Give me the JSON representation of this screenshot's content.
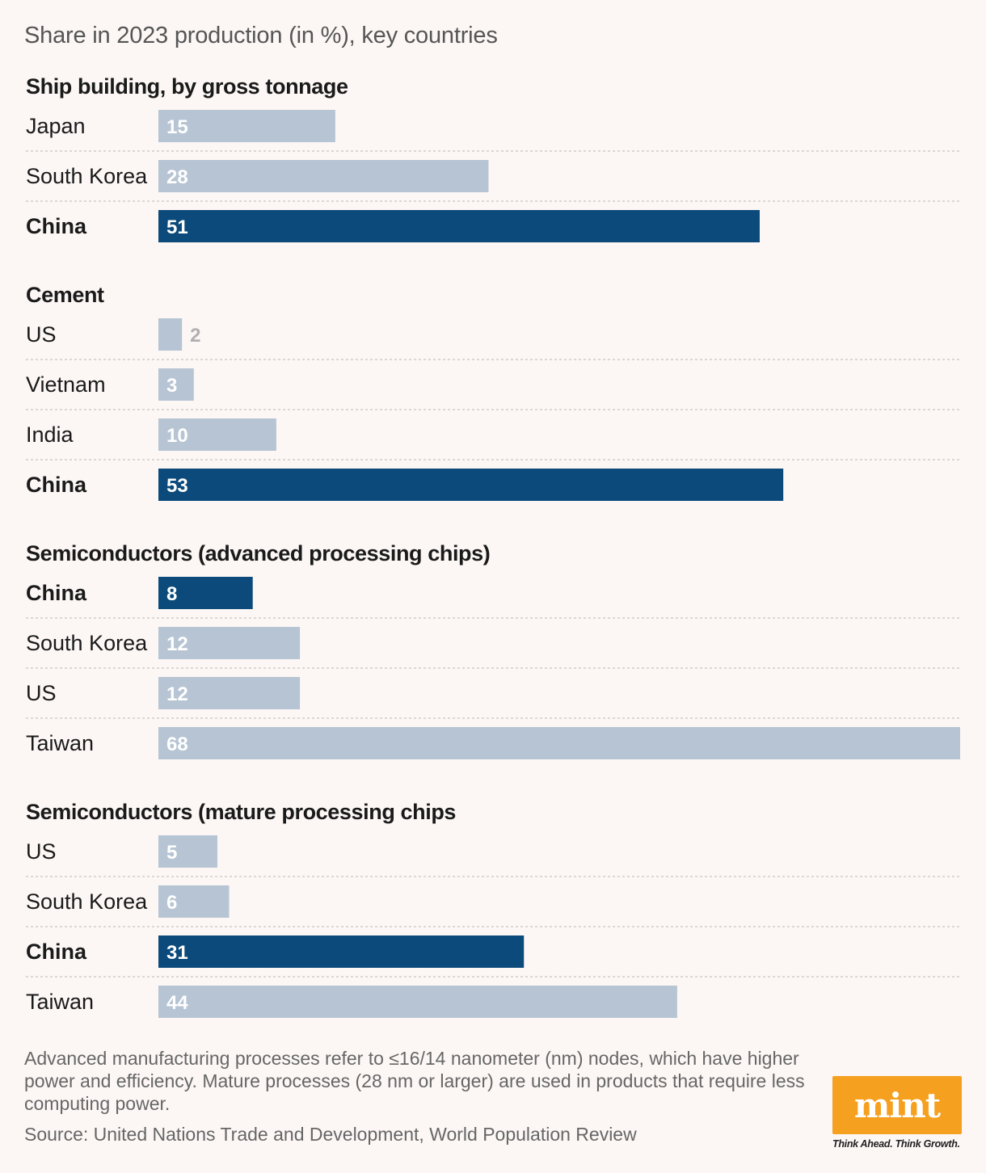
{
  "subtitle": "Share in 2023 production (in %), key countries",
  "chart_data": {
    "type": "bar",
    "orientation": "horizontal",
    "title": "Share in 2023 production (in %), key countries",
    "unit": "%",
    "highlight_color": "#0b4a7a",
    "base_color": "#b6c4d3",
    "panels": [
      {
        "title": "Ship building, by gross tonnage",
        "categories": [
          "Japan",
          "South Korea",
          "China"
        ],
        "values": [
          15,
          28,
          51
        ],
        "highlight": [
          false,
          false,
          true
        ]
      },
      {
        "title": "Cement",
        "categories": [
          "US",
          "Vietnam",
          "India",
          "China"
        ],
        "values": [
          2,
          3,
          10,
          53
        ],
        "highlight": [
          false,
          false,
          false,
          true
        ]
      },
      {
        "title": "Semiconductors (advanced processing chips)",
        "categories": [
          "China",
          "South Korea",
          "US",
          "Taiwan"
        ],
        "values": [
          8,
          12,
          12,
          68
        ],
        "highlight": [
          true,
          false,
          false,
          false
        ]
      },
      {
        "title": "Semiconductors (mature processing chips",
        "categories": [
          "US",
          "South Korea",
          "China",
          "Taiwan"
        ],
        "values": [
          5,
          6,
          31,
          44
        ],
        "highlight": [
          false,
          false,
          true,
          false
        ]
      }
    ]
  },
  "footnote": "Advanced manufacturing processes refer to ≤16/14 nanometer (nm) nodes, which have higher power and efficiency. Mature processes (28 nm or larger) are used in products that require less computing power.",
  "source": "Source: United Nations Trade and Development, World Population Review",
  "logo": {
    "text": "mint",
    "tagline": "Think Ahead. Think Growth."
  }
}
